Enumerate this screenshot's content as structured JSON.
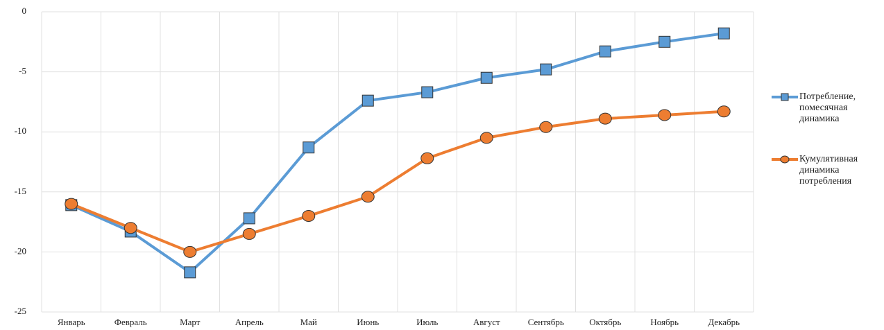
{
  "chart_data": {
    "type": "line",
    "categories": [
      "Январь",
      "Февраль",
      "Март",
      "Апрель",
      "Май",
      "Июнь",
      "Июль",
      "Август",
      "Сентябрь",
      "Октябрь",
      "Ноябрь",
      "Декабрь"
    ],
    "series": [
      {
        "name": "Потребление, помесячная динамика",
        "color": "#5b9bd5",
        "marker": "square",
        "values": [
          -16.1,
          -18.3,
          -21.7,
          -17.2,
          -11.3,
          -7.4,
          -6.7,
          -5.5,
          -4.8,
          -3.3,
          -2.5,
          -1.8
        ]
      },
      {
        "name": "Кумулятивная динамика потребления",
        "color": "#ed7d31",
        "marker": "circle",
        "values": [
          -16.0,
          -18.0,
          -20.0,
          -18.5,
          -17.0,
          -15.4,
          -12.2,
          -10.5,
          -9.6,
          -8.9,
          -8.6,
          -8.3
        ]
      }
    ],
    "ylim": [
      -25,
      0
    ],
    "yticks": [
      -25,
      -20,
      -15,
      -10,
      -5,
      0
    ],
    "grid": true,
    "legend": "right"
  }
}
